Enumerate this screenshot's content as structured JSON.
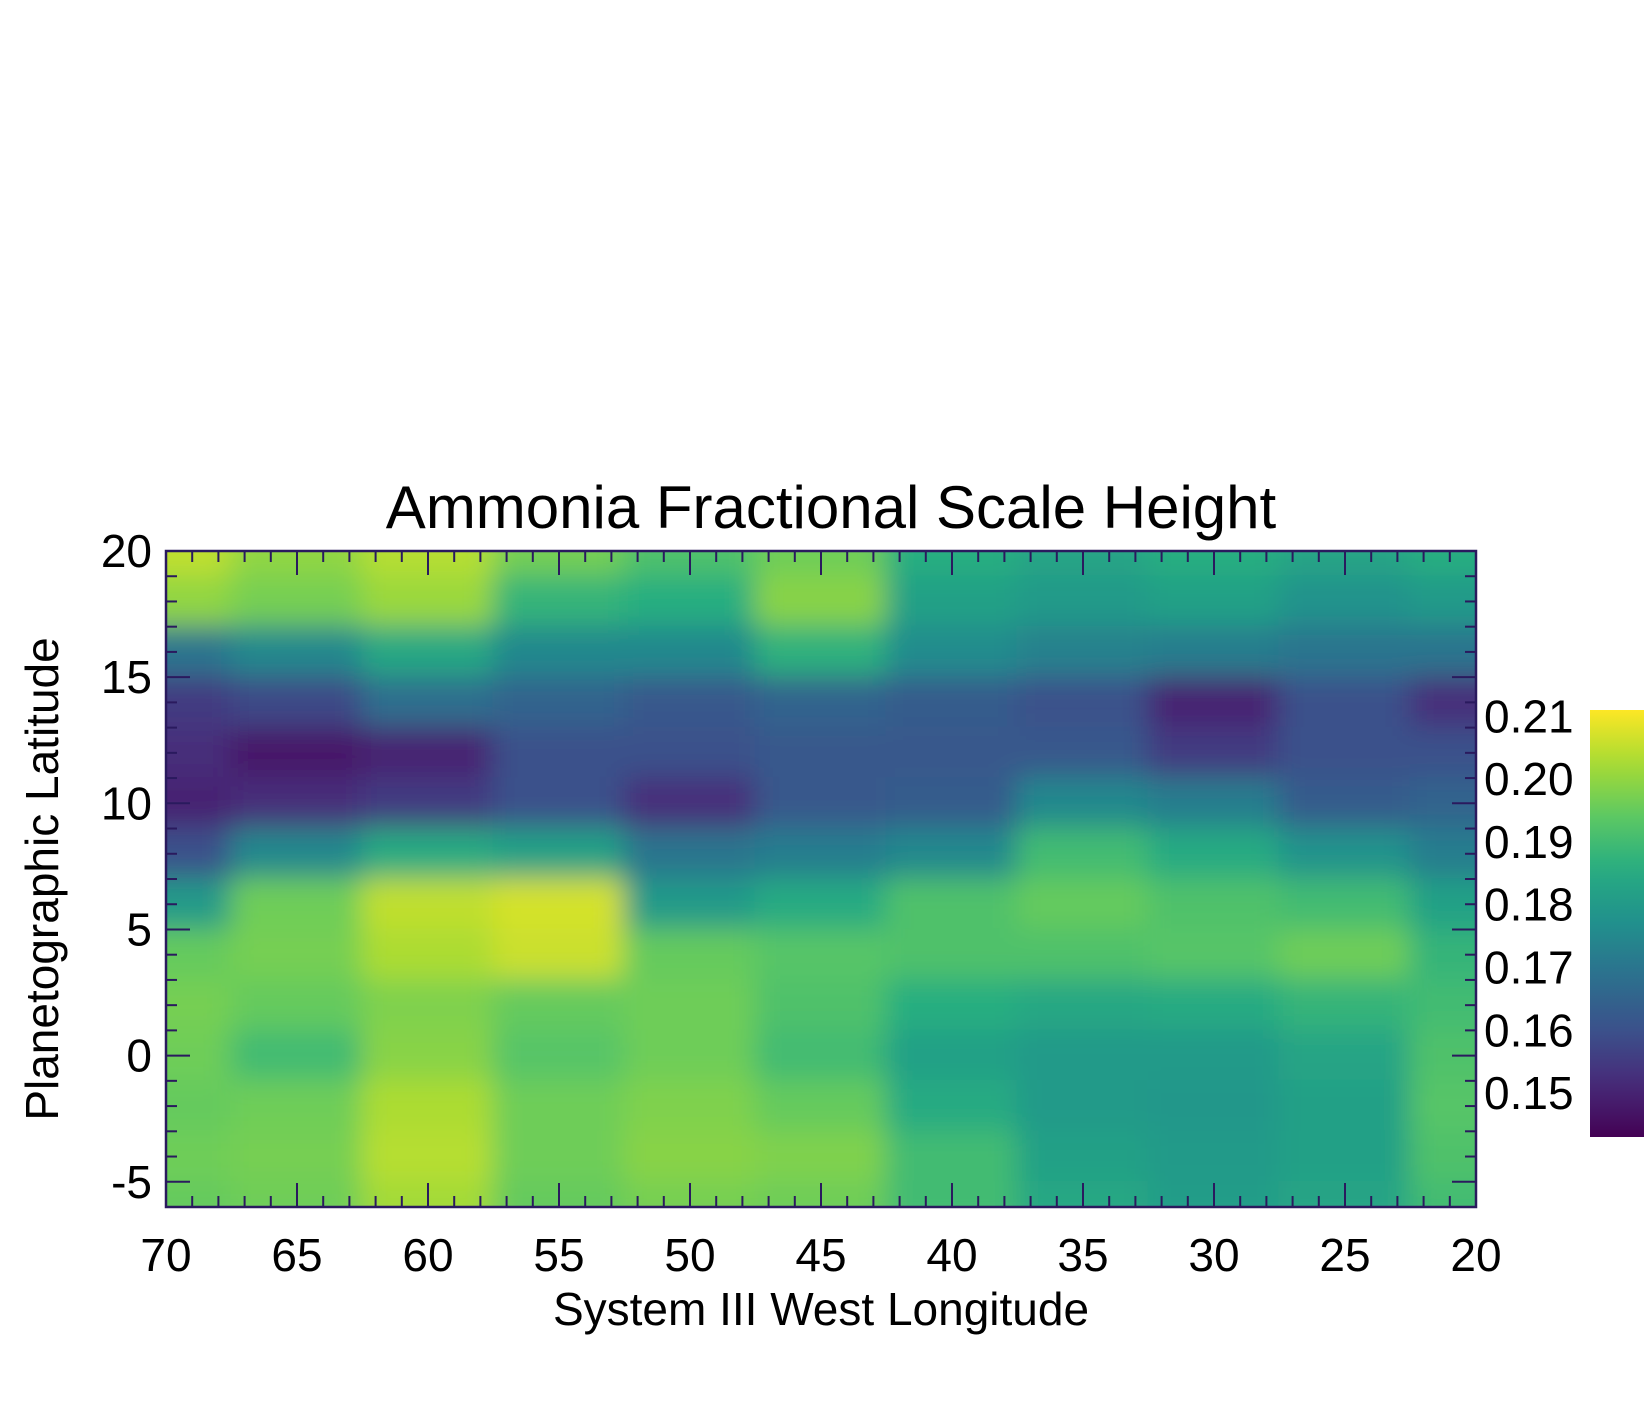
{
  "chart_data": {
    "type": "heatmap",
    "title": "Ammonia Fractional Scale Height",
    "xlabel": "System III West Longitude",
    "ylabel": "Planetographic Latitude",
    "xlim": [
      70,
      20
    ],
    "ylim": [
      -6,
      20
    ],
    "x_reversed": true,
    "x_ticks": [
      70,
      65,
      60,
      55,
      50,
      45,
      40,
      35,
      30,
      25,
      20
    ],
    "y_ticks": [
      -5,
      0,
      5,
      10,
      15,
      20
    ],
    "colorbar": {
      "colormap": "viridis",
      "range": [
        0.143,
        0.211
      ],
      "ticks": [
        "0.21",
        "0.20",
        "0.19",
        "0.18",
        "0.17",
        "0.16",
        "0.15"
      ]
    },
    "x": [
      70,
      65,
      60,
      55,
      50,
      45,
      40,
      35,
      30,
      25,
      20
    ],
    "y": [
      20,
      18,
      16,
      14,
      12,
      10,
      8,
      6,
      4,
      2,
      0,
      -2,
      -4,
      -6
    ],
    "z": [
      [
        0.205,
        0.2,
        0.204,
        0.197,
        0.192,
        0.196,
        0.186,
        0.183,
        0.186,
        0.183,
        0.186
      ],
      [
        0.2,
        0.197,
        0.201,
        0.188,
        0.186,
        0.199,
        0.182,
        0.18,
        0.182,
        0.178,
        0.18
      ],
      [
        0.17,
        0.175,
        0.184,
        0.175,
        0.175,
        0.187,
        0.176,
        0.173,
        0.172,
        0.17,
        0.17
      ],
      [
        0.155,
        0.158,
        0.168,
        0.165,
        0.162,
        0.165,
        0.163,
        0.16,
        0.15,
        0.16,
        0.152
      ],
      [
        0.152,
        0.148,
        0.15,
        0.16,
        0.16,
        0.162,
        0.162,
        0.162,
        0.155,
        0.16,
        0.16
      ],
      [
        0.15,
        0.152,
        0.155,
        0.16,
        0.152,
        0.162,
        0.163,
        0.175,
        0.172,
        0.163,
        0.165
      ],
      [
        0.16,
        0.175,
        0.185,
        0.182,
        0.17,
        0.172,
        0.175,
        0.19,
        0.185,
        0.178,
        0.172
      ],
      [
        0.18,
        0.196,
        0.205,
        0.207,
        0.18,
        0.185,
        0.192,
        0.195,
        0.192,
        0.19,
        0.182
      ],
      [
        0.195,
        0.197,
        0.203,
        0.206,
        0.195,
        0.193,
        0.192,
        0.192,
        0.193,
        0.196,
        0.188
      ],
      [
        0.197,
        0.195,
        0.198,
        0.195,
        0.196,
        0.192,
        0.186,
        0.184,
        0.185,
        0.188,
        0.19
      ],
      [
        0.196,
        0.19,
        0.199,
        0.193,
        0.196,
        0.19,
        0.182,
        0.18,
        0.18,
        0.183,
        0.192
      ],
      [
        0.195,
        0.196,
        0.203,
        0.196,
        0.198,
        0.195,
        0.185,
        0.18,
        0.179,
        0.182,
        0.193
      ],
      [
        0.196,
        0.197,
        0.204,
        0.196,
        0.199,
        0.198,
        0.19,
        0.182,
        0.18,
        0.182,
        0.192
      ],
      [
        0.195,
        0.196,
        0.202,
        0.195,
        0.197,
        0.196,
        0.19,
        0.184,
        0.181,
        0.183,
        0.19
      ]
    ]
  }
}
